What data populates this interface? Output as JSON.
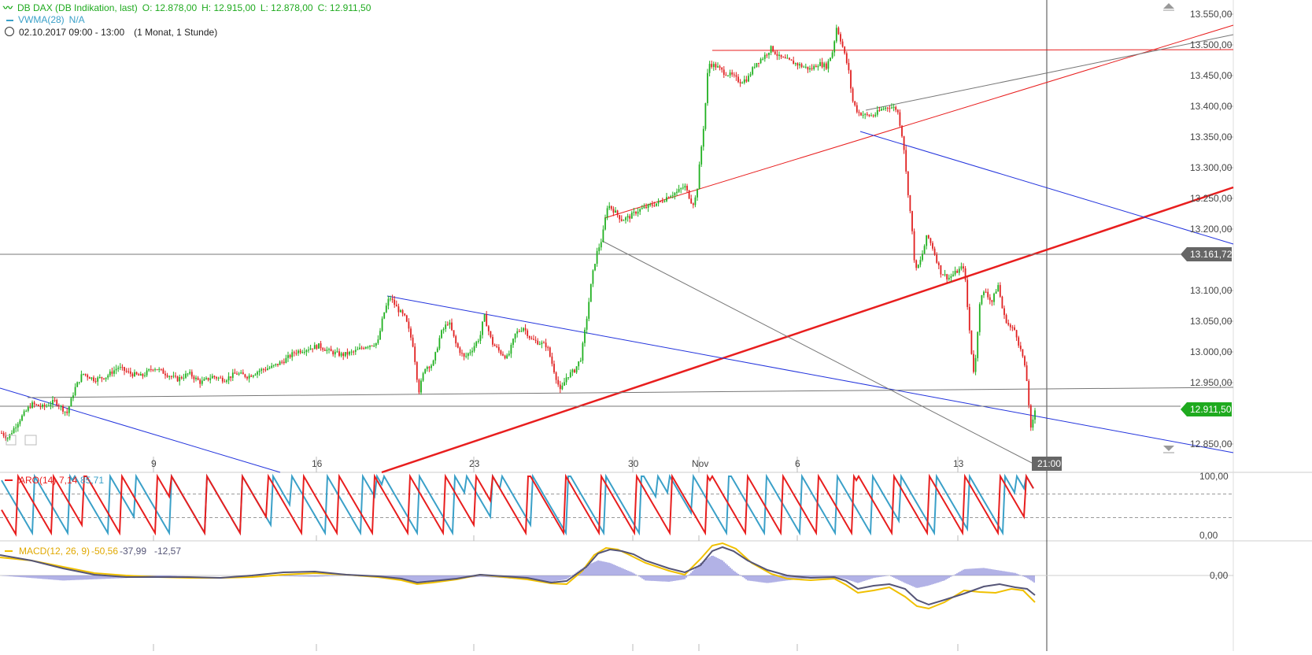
{
  "header": {
    "instrument": "DB DAX (DB Indikation, last)",
    "ohlc": {
      "o": "O: 12.878,00",
      "h": "H: 12.915,00",
      "l": "L: 12.878,00",
      "c": "C: 12.911,50"
    },
    "vwma_label": "VWMA(28)",
    "vwma_value": "N/A",
    "date_range": "02.10.2017 09:00 - 13:00",
    "period": "(1 Monat, 1 Stunde)"
  },
  "colors": {
    "up": "#20b020",
    "down": "#e02020",
    "red_line": "#e81e1e",
    "blue_line": "#2233dd",
    "gray_line": "#777777",
    "aroon_up": "#3aa0c8",
    "aroon_down": "#e81e1e",
    "macd": "#555577",
    "signal": "#f0c000",
    "hist": "#6666cc",
    "badge_green": "#1faa1f",
    "badge_gray": "#666666"
  },
  "chart_data": [
    {
      "type": "line",
      "title": "DB DAX (DB Indikation, last)",
      "note_series": "hourly candlesticks",
      "y_ticks": [
        "13.550,00",
        "13.500,00",
        "13.450,00",
        "13.400,00",
        "13.350,00",
        "13.300,00",
        "13.250,00",
        "13.200,00",
        "13.100,00",
        "13.050,00",
        "13.000,00",
        "12.950,00",
        "12.850,00"
      ],
      "y_tick_values": [
        13550,
        13500,
        13450,
        13400,
        13350,
        13300,
        13250,
        13200,
        13100,
        13050,
        13000,
        12950,
        12850
      ],
      "ylim": [
        12830,
        13570
      ],
      "x_ticks": [
        "9",
        "16",
        "23",
        "30",
        "Nov",
        "6",
        "13"
      ],
      "current_price_label": "12.911,50",
      "current_price": 12911.5,
      "crosshair_price_label": "13.161,72",
      "crosshair_price": 13161.72,
      "crosshair_time": "21:00",
      "price_path": [
        [
          0,
          12870
        ],
        [
          10,
          12860
        ],
        [
          25,
          12890
        ],
        [
          40,
          12915
        ],
        [
          55,
          12910
        ],
        [
          70,
          12920
        ],
        [
          85,
          12900
        ],
        [
          95,
          12940
        ],
        [
          105,
          12965
        ],
        [
          120,
          12955
        ],
        [
          135,
          12960
        ],
        [
          150,
          12975
        ],
        [
          165,
          12965
        ],
        [
          180,
          12960
        ],
        [
          195,
          12975
        ],
        [
          210,
          12965
        ],
        [
          225,
          12955
        ],
        [
          240,
          12965
        ],
        [
          255,
          12950
        ],
        [
          270,
          12960
        ],
        [
          285,
          12955
        ],
        [
          300,
          12965
        ],
        [
          315,
          12960
        ],
        [
          330,
          12970
        ],
        [
          345,
          12975
        ],
        [
          360,
          12985
        ],
        [
          375,
          13000
        ],
        [
          390,
          13005
        ],
        [
          405,
          13010
        ],
        [
          420,
          13000
        ],
        [
          435,
          12995
        ],
        [
          450,
          13000
        ],
        [
          465,
          13010
        ],
        [
          480,
          13015
        ],
        [
          487,
          13060
        ],
        [
          495,
          13090
        ],
        [
          505,
          13070
        ],
        [
          515,
          13055
        ],
        [
          525,
          13010
        ],
        [
          532,
          12935
        ],
        [
          540,
          12975
        ],
        [
          550,
          12980
        ],
        [
          560,
          13030
        ],
        [
          570,
          13050
        ],
        [
          580,
          13010
        ],
        [
          590,
          12990
        ],
        [
          600,
          13005
        ],
        [
          610,
          13025
        ],
        [
          615,
          13060
        ],
        [
          625,
          13015
        ],
        [
          635,
          13000
        ],
        [
          645,
          12990
        ],
        [
          655,
          13030
        ],
        [
          665,
          13040
        ],
        [
          675,
          13020
        ],
        [
          685,
          13015
        ],
        [
          695,
          13010
        ],
        [
          705,
          12965
        ],
        [
          712,
          12935
        ],
        [
          720,
          12960
        ],
        [
          730,
          12970
        ],
        [
          738,
          12990
        ],
        [
          745,
          13050
        ],
        [
          752,
          13120
        ],
        [
          758,
          13160
        ],
        [
          765,
          13185
        ],
        [
          772,
          13240
        ],
        [
          780,
          13230
        ],
        [
          790,
          13215
        ],
        [
          800,
          13220
        ],
        [
          810,
          13230
        ],
        [
          820,
          13235
        ],
        [
          830,
          13240
        ],
        [
          840,
          13245
        ],
        [
          850,
          13255
        ],
        [
          860,
          13260
        ],
        [
          870,
          13270
        ],
        [
          880,
          13240
        ],
        [
          885,
          13255
        ],
        [
          890,
          13320
        ],
        [
          895,
          13380
        ],
        [
          900,
          13470
        ],
        [
          910,
          13465
        ],
        [
          920,
          13455
        ],
        [
          930,
          13450
        ],
        [
          940,
          13440
        ],
        [
          950,
          13445
        ],
        [
          960,
          13470
        ],
        [
          970,
          13480
        ],
        [
          980,
          13495
        ],
        [
          990,
          13480
        ],
        [
          1000,
          13475
        ],
        [
          1010,
          13470
        ],
        [
          1020,
          13465
        ],
        [
          1030,
          13460
        ],
        [
          1040,
          13470
        ],
        [
          1050,
          13465
        ],
        [
          1058,
          13490
        ],
        [
          1063,
          13530
        ],
        [
          1070,
          13500
        ],
        [
          1078,
          13460
        ],
        [
          1083,
          13410
        ],
        [
          1090,
          13390
        ],
        [
          1100,
          13385
        ],
        [
          1110,
          13385
        ],
        [
          1120,
          13395
        ],
        [
          1130,
          13400
        ],
        [
          1140,
          13395
        ],
        [
          1148,
          13340
        ],
        [
          1152,
          13280
        ],
        [
          1158,
          13210
        ],
        [
          1163,
          13130
        ],
        [
          1170,
          13150
        ],
        [
          1178,
          13190
        ],
        [
          1185,
          13170
        ],
        [
          1195,
          13130
        ],
        [
          1205,
          13120
        ],
        [
          1215,
          13130
        ],
        [
          1225,
          13140
        ],
        [
          1230,
          13060
        ],
        [
          1235,
          12990
        ],
        [
          1238,
          12960
        ],
        [
          1245,
          13085
        ],
        [
          1252,
          13100
        ],
        [
          1260,
          13080
        ],
        [
          1268,
          13110
        ],
        [
          1275,
          13060
        ],
        [
          1283,
          13040
        ],
        [
          1290,
          13035
        ],
        [
          1295,
          13010
        ],
        [
          1300,
          12990
        ],
        [
          1305,
          12950
        ],
        [
          1310,
          12870
        ],
        [
          1316,
          12912
        ]
      ],
      "trend_lines": [
        {
          "color": "red",
          "width": 2.5,
          "from": [
            485,
            600
          ],
          "to": [
            1567,
            238
          ]
        },
        {
          "color": "red",
          "width": 1,
          "from": [
            768,
            277
          ],
          "to": [
            1567,
            32
          ]
        },
        {
          "color": "red",
          "width": 1,
          "from": [
            905,
            64
          ],
          "to": [
            1567,
            63
          ]
        },
        {
          "color": "blue",
          "width": 1,
          "from": [
            0,
            493
          ],
          "to": [
            356,
            600
          ]
        },
        {
          "color": "blue",
          "width": 1,
          "from": [
            492,
            376
          ],
          "to": [
            1567,
            575
          ]
        },
        {
          "color": "blue",
          "width": 1,
          "from": [
            1093,
            167
          ],
          "to": [
            1567,
            310
          ]
        },
        {
          "color": "gray",
          "width": 1,
          "from": [
            765,
            306
          ],
          "to": [
            1315,
            590
          ]
        },
        {
          "color": "gray",
          "width": 1,
          "from": [
            35,
            505
          ],
          "to": [
            1567,
            492
          ]
        },
        {
          "color": "gray",
          "width": 1,
          "from": [
            1100,
            140
          ],
          "to": [
            1567,
            44
          ]
        },
        {
          "color": "gray",
          "width": 1,
          "from": [
            0,
            323
          ],
          "to": [
            1500,
            323
          ]
        },
        {
          "color": "gray",
          "width": 1,
          "from": [
            0,
            516
          ],
          "to": [
            1500,
            516
          ]
        }
      ]
    },
    {
      "type": "line",
      "title": "ARO(14)",
      "label": "ARO(14)",
      "values_text": [
        "7,14",
        "85,71"
      ],
      "series": [
        {
          "name": "ARO(14)",
          "color": "red"
        },
        {
          "name": "",
          "color": "blue"
        }
      ],
      "y_ticks": [
        "100,00",
        "0,00"
      ],
      "ylim": [
        0,
        100
      ],
      "levels": [
        70,
        30
      ]
    },
    {
      "type": "line",
      "title": "MACD(12, 26, 9)",
      "label": "MACD(12, 26, 9)",
      "values_text": [
        "-50,56",
        "-37,99",
        "-12,57"
      ],
      "y_ticks": [
        "0,00"
      ],
      "macd_points": [
        [
          0,
          705
        ],
        [
          40,
          712
        ],
        [
          80,
          722
        ],
        [
          120,
          730
        ],
        [
          160,
          733
        ],
        [
          200,
          733
        ],
        [
          240,
          733
        ],
        [
          280,
          734
        ],
        [
          320,
          731
        ],
        [
          360,
          727
        ],
        [
          400,
          726
        ],
        [
          440,
          730
        ],
        [
          480,
          732
        ],
        [
          510,
          735
        ],
        [
          530,
          740
        ],
        [
          550,
          738
        ],
        [
          580,
          735
        ],
        [
          610,
          730
        ],
        [
          640,
          732
        ],
        [
          670,
          734
        ],
        [
          700,
          740
        ],
        [
          720,
          738
        ],
        [
          745,
          720
        ],
        [
          760,
          703
        ],
        [
          775,
          698
        ],
        [
          790,
          700
        ],
        [
          805,
          704
        ],
        [
          820,
          712
        ],
        [
          850,
          722
        ],
        [
          870,
          727
        ],
        [
          890,
          718
        ],
        [
          905,
          700
        ],
        [
          918,
          695
        ],
        [
          932,
          700
        ],
        [
          950,
          712
        ],
        [
          975,
          724
        ],
        [
          1000,
          731
        ],
        [
          1030,
          734
        ],
        [
          1060,
          733
        ],
        [
          1075,
          738
        ],
        [
          1090,
          748
        ],
        [
          1110,
          744
        ],
        [
          1130,
          742
        ],
        [
          1150,
          748
        ],
        [
          1165,
          762
        ],
        [
          1180,
          768
        ],
        [
          1200,
          762
        ],
        [
          1225,
          754
        ],
        [
          1250,
          745
        ],
        [
          1270,
          742
        ],
        [
          1290,
          746
        ],
        [
          1305,
          748
        ],
        [
          1315,
          756
        ]
      ],
      "signal_points": [
        [
          0,
          708
        ],
        [
          40,
          712
        ],
        [
          80,
          720
        ],
        [
          120,
          728
        ],
        [
          160,
          731
        ],
        [
          200,
          733
        ],
        [
          240,
          734
        ],
        [
          280,
          734
        ],
        [
          320,
          733
        ],
        [
          360,
          730
        ],
        [
          400,
          728
        ],
        [
          440,
          730
        ],
        [
          480,
          733
        ],
        [
          510,
          737
        ],
        [
          530,
          742
        ],
        [
          550,
          740
        ],
        [
          580,
          736
        ],
        [
          610,
          730
        ],
        [
          640,
          733
        ],
        [
          670,
          736
        ],
        [
          700,
          741
        ],
        [
          720,
          742
        ],
        [
          740,
          725
        ],
        [
          755,
          705
        ],
        [
          770,
          696
        ],
        [
          785,
          698
        ],
        [
          800,
          705
        ],
        [
          820,
          715
        ],
        [
          850,
          725
        ],
        [
          870,
          730
        ],
        [
          890,
          710
        ],
        [
          905,
          693
        ],
        [
          918,
          690
        ],
        [
          935,
          697
        ],
        [
          955,
          715
        ],
        [
          980,
          729
        ],
        [
          1000,
          735
        ],
        [
          1030,
          737
        ],
        [
          1060,
          735
        ],
        [
          1075,
          743
        ],
        [
          1090,
          753
        ],
        [
          1110,
          750
        ],
        [
          1130,
          746
        ],
        [
          1150,
          758
        ],
        [
          1165,
          770
        ],
        [
          1180,
          773
        ],
        [
          1200,
          765
        ],
        [
          1225,
          750
        ],
        [
          1245,
          752
        ],
        [
          1265,
          753
        ],
        [
          1285,
          748
        ],
        [
          1300,
          750
        ],
        [
          1315,
          765
        ]
      ],
      "hist_points": [
        [
          0,
          0
        ],
        [
          80,
          -4
        ],
        [
          160,
          -2
        ],
        [
          240,
          0
        ],
        [
          320,
          0
        ],
        [
          400,
          -1
        ],
        [
          440,
          0
        ],
        [
          510,
          -3
        ],
        [
          530,
          -7
        ],
        [
          550,
          -4
        ],
        [
          610,
          -1
        ],
        [
          640,
          -2
        ],
        [
          700,
          -5
        ],
        [
          720,
          -3
        ],
        [
          745,
          8
        ],
        [
          760,
          12
        ],
        [
          775,
          10
        ],
        [
          790,
          6
        ],
        [
          805,
          2
        ],
        [
          820,
          -4
        ],
        [
          850,
          -5
        ],
        [
          870,
          -3
        ],
        [
          890,
          10
        ],
        [
          905,
          16
        ],
        [
          918,
          12
        ],
        [
          932,
          4
        ],
        [
          950,
          -4
        ],
        [
          975,
          -6
        ],
        [
          1000,
          -4
        ],
        [
          1030,
          -2
        ],
        [
          1060,
          -1
        ],
        [
          1075,
          -3
        ],
        [
          1090,
          -6
        ],
        [
          1110,
          -2
        ],
        [
          1130,
          0
        ],
        [
          1150,
          -6
        ],
        [
          1165,
          -10
        ],
        [
          1180,
          -8
        ],
        [
          1200,
          -4
        ],
        [
          1225,
          5
        ],
        [
          1250,
          6
        ],
        [
          1270,
          4
        ],
        [
          1290,
          2
        ],
        [
          1305,
          -2
        ],
        [
          1315,
          -6
        ]
      ]
    }
  ]
}
